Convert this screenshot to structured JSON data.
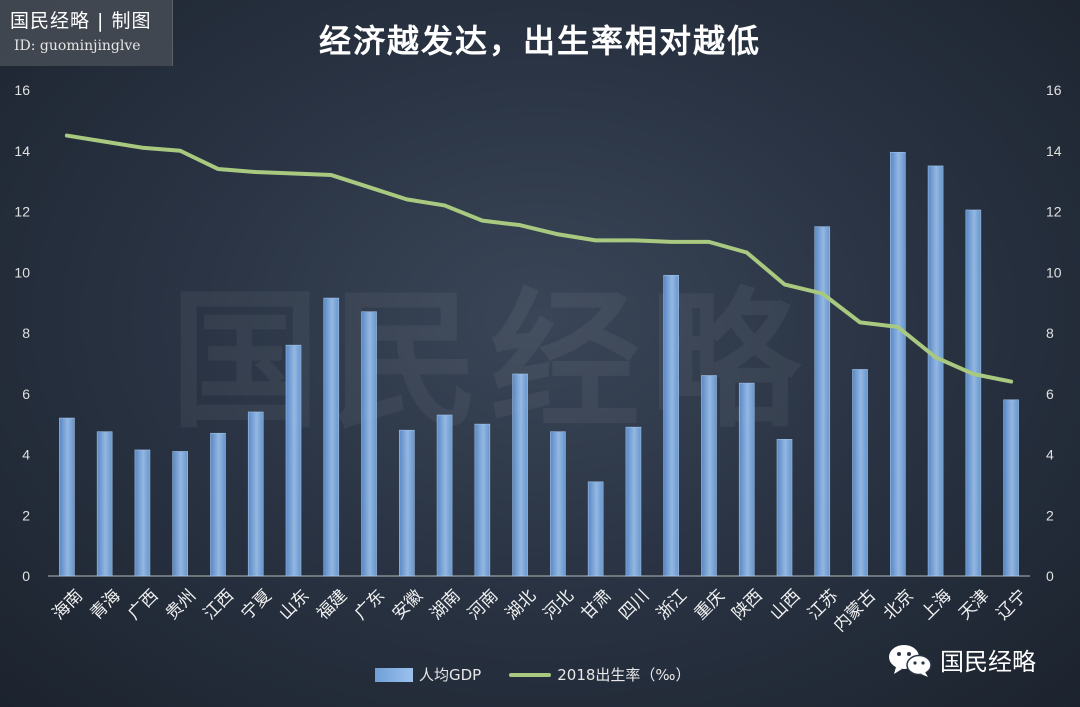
{
  "brand": {
    "line1": "国民经略 | 制图",
    "line2": "ID: guominjinglve"
  },
  "title": "经济越发达，出生率相对越低",
  "watermark": "国民经略",
  "footer_brand": "国民经略",
  "colors": {
    "bar": "#7fb0e8",
    "line": "#a8c97f",
    "axis": "#c8c8c8"
  },
  "chart_data": {
    "type": "bar",
    "categories": [
      "海南",
      "青海",
      "广西",
      "贵州",
      "江西",
      "宁夏",
      "山东",
      "福建",
      "广东",
      "安徽",
      "湖南",
      "河南",
      "湖北",
      "河北",
      "甘肃",
      "四川",
      "浙江",
      "重庆",
      "陕西",
      "山西",
      "江苏",
      "内蒙古",
      "北京",
      "上海",
      "天津",
      "辽宁"
    ],
    "series": [
      {
        "name": "人均GDP",
        "type": "bar",
        "values": [
          5.2,
          4.75,
          4.15,
          4.1,
          4.7,
          5.4,
          7.6,
          9.15,
          8.7,
          4.8,
          5.3,
          5.0,
          6.65,
          4.75,
          3.1,
          4.9,
          9.9,
          6.6,
          6.35,
          4.5,
          11.5,
          6.8,
          13.95,
          13.5,
          12.05,
          5.8
        ]
      },
      {
        "name": "2018出生率（‰）",
        "type": "line",
        "values": [
          14.5,
          14.3,
          14.1,
          14.0,
          13.4,
          13.3,
          13.25,
          13.2,
          12.8,
          12.4,
          12.2,
          11.7,
          11.55,
          11.25,
          11.05,
          11.05,
          11.0,
          11.0,
          10.65,
          9.6,
          9.3,
          8.35,
          8.2,
          7.2,
          6.65,
          6.4
        ]
      }
    ],
    "ylim": [
      0,
      16
    ],
    "yticks": [
      0,
      2,
      4,
      6,
      8,
      10,
      12,
      14,
      16
    ],
    "y2ticks": [
      0,
      2,
      4,
      6,
      8,
      10,
      12,
      14,
      16
    ],
    "grid": false,
    "legend": "bottom"
  }
}
